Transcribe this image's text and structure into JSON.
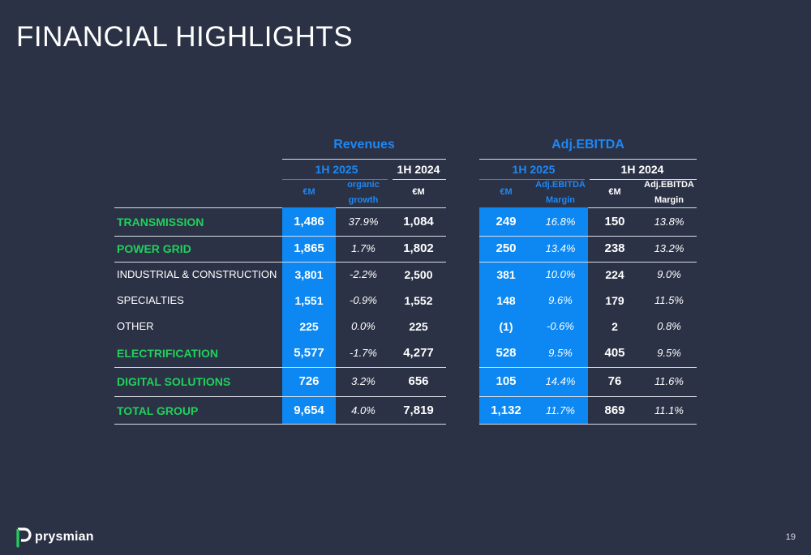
{
  "title": "FINANCIAL HIGHLIGHTS",
  "revenues": {
    "title": "Revenues",
    "period_current": "1H 2025",
    "period_prior": "1H 2024",
    "col_em": "€M",
    "col_organic_1": "organic",
    "col_organic_2": "growth",
    "col_em_prior": "€M"
  },
  "ebitda": {
    "title": "Adj.EBITDA",
    "period_current": "1H 2025",
    "period_prior": "1H 2024",
    "col_em": "€M",
    "col_margin_1": "Adj.EBITDA",
    "col_margin_2": "Margin",
    "col_em_prior": "€M",
    "col_margin_prior_1": "Adj.EBITDA",
    "col_margin_prior_2": "Margin"
  },
  "rows": [
    {
      "label": "TRANSMISSION",
      "rev_cur": "1,486",
      "rev_growth": "37.9%",
      "rev_prior": "1,084",
      "eb_cur": "249",
      "eb_margin": "16.8%",
      "eb_prior": "150",
      "eb_prior_margin": "13.8%"
    },
    {
      "label": "POWER GRID",
      "rev_cur": "1,865",
      "rev_growth": "1.7%",
      "rev_prior": "1,802",
      "eb_cur": "250",
      "eb_margin": "13.4%",
      "eb_prior": "238",
      "eb_prior_margin": "13.2%"
    },
    {
      "label": "INDUSTRIAL & CONSTRUCTION",
      "rev_cur": "3,801",
      "rev_growth": "-2.2%",
      "rev_prior": "2,500",
      "eb_cur": "381",
      "eb_margin": "10.0%",
      "eb_prior": "224",
      "eb_prior_margin": "9.0%"
    },
    {
      "label": "SPECIALTIES",
      "rev_cur": "1,551",
      "rev_growth": "-0.9%",
      "rev_prior": "1,552",
      "eb_cur": "148",
      "eb_margin": "9.6%",
      "eb_prior": "179",
      "eb_prior_margin": "11.5%"
    },
    {
      "label": "OTHER",
      "rev_cur": "225",
      "rev_growth": "0.0%",
      "rev_prior": "225",
      "eb_cur": "(1)",
      "eb_margin": "-0.6%",
      "eb_prior": "2",
      "eb_prior_margin": "0.8%"
    },
    {
      "label": "ELECTRIFICATION",
      "rev_cur": "5,577",
      "rev_growth": "-1.7%",
      "rev_prior": "4,277",
      "eb_cur": "528",
      "eb_margin": "9.5%",
      "eb_prior": "405",
      "eb_prior_margin": "9.5%"
    },
    {
      "label": "DIGITAL SOLUTIONS",
      "rev_cur": "726",
      "rev_growth": "3.2%",
      "rev_prior": "656",
      "eb_cur": "105",
      "eb_margin": "14.4%",
      "eb_prior": "76",
      "eb_prior_margin": "11.6%"
    },
    {
      "label": "TOTAL GROUP",
      "rev_cur": "9,654",
      "rev_growth": "4.0%",
      "rev_prior": "7,819",
      "eb_cur": "1,132",
      "eb_margin": "11.7%",
      "eb_prior": "869",
      "eb_prior_margin": "11.1%"
    }
  ],
  "logo_text": "prysmian",
  "page_number": "19",
  "colors": {
    "background": "#2b3245",
    "accent_blue": "#0d88f2",
    "title_blue": "#1e88f5",
    "segment_green": "#1fd15c",
    "logo_green": "#1fd15c"
  }
}
